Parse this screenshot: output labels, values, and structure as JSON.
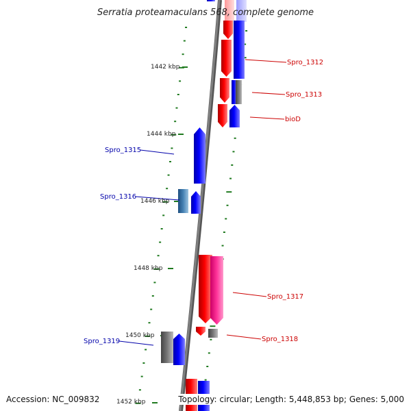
{
  "title": "Serratia proteamaculans 568, complete genome",
  "accession": "Accession: NC_009832",
  "summary": "Topology: circular; Length: 5,448,853 bp; Genes: 5,000",
  "kbp_ticks": [
    "1442 kbp",
    "1444 kbp",
    "1446 kbp",
    "1448 kbp",
    "1450 kbp",
    "1452 kbp"
  ],
  "gene_labels": [
    "Spro_1312",
    "Spro_1313",
    "bioD",
    "Spro_1315",
    "Spro_1316",
    "Spro_1317",
    "Spro_1318",
    "Spro_1319"
  ],
  "colors": {
    "forward_strand": "#ff0000",
    "reverse_strand": "#0000ff",
    "forward_label": "#cc0000",
    "reverse_label": "#0000aa",
    "backbone": "#808080",
    "tick": "#1f7a1f",
    "other_gene": "#808080",
    "rna_gene": "#ff3399",
    "special_gene": "#4682b4"
  }
}
